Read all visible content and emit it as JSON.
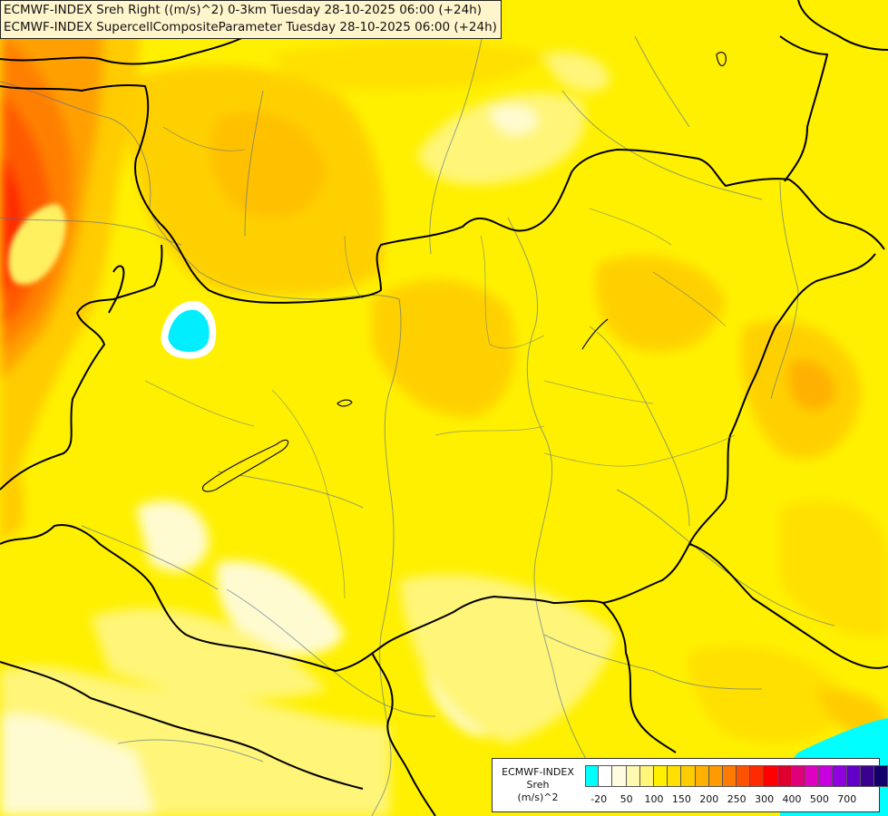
{
  "header": {
    "line1": "ECMWF-INDEX Sreh Right ((m/s)^2) 0-3km Tuesday 28-10-2025 06:00 (+24h)",
    "line2": "ECMWF-INDEX SupercellCompositeParameter Tuesday 28-10-2025 06:00 (+24h)"
  },
  "legend": {
    "title": "ECMWF-INDEX",
    "field": "Sreh",
    "unit": "(m/s)^2",
    "colors": [
      "#00ffff",
      "#ffffff",
      "#fffbe0",
      "#fff8b0",
      "#fff578",
      "#fff000",
      "#ffe000",
      "#ffcc00",
      "#ffb000",
      "#ff9a00",
      "#ff7a00",
      "#ff5200",
      "#ff2a00",
      "#ff0000",
      "#e00030",
      "#e0007a",
      "#e000c0",
      "#c800e0",
      "#9000e0",
      "#6000c8",
      "#3a0090",
      "#14006a"
    ],
    "ticks": [
      {
        "label": "-20",
        "index": 1
      },
      {
        "label": "50",
        "index": 3
      },
      {
        "label": "100",
        "index": 5
      },
      {
        "label": "150",
        "index": 7
      },
      {
        "label": "200",
        "index": 9
      },
      {
        "label": "250",
        "index": 11
      },
      {
        "label": "300",
        "index": 13
      },
      {
        "label": "400",
        "index": 15
      },
      {
        "label": "500",
        "index": 17
      },
      {
        "label": "700",
        "index": 19
      }
    ]
  }
}
